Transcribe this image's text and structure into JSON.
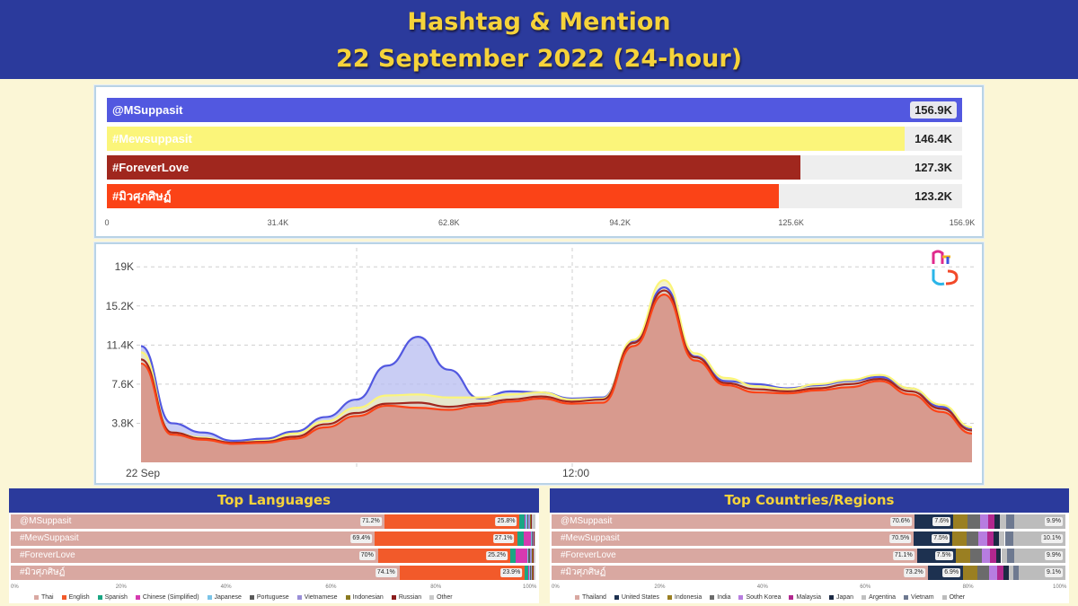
{
  "header": {
    "title_line1": "Hashtag & Mention",
    "title_line2": "22 September 2022 (24-hour)"
  },
  "colors": {
    "header_bg": "#2b3a9c",
    "header_text": "#f6d33a",
    "page_bg": "#fbf6d6",
    "series": [
      "#5258e0",
      "#fbf57a",
      "#a0271e",
      "#fb4317"
    ],
    "area_fill": "#d89a8e"
  },
  "logo": {
    "icon": "brand-logo-icon",
    "text": "MS"
  },
  "bar_chart": {
    "chart_data": {
      "type": "bar",
      "orientation": "horizontal",
      "categories": [
        "@MSuppasit",
        "#Mewsuppasit",
        "#ForeverLove",
        "#มิวศุภศิษฏ์"
      ],
      "values": [
        156900,
        146400,
        127300,
        123200
      ],
      "value_labels": [
        "156.9K",
        "146.4K",
        "127.3K",
        "123.2K"
      ],
      "xlim": [
        0,
        156900
      ],
      "x_ticks": [
        "0",
        "31.4K",
        "62.8K",
        "94.2K",
        "125.6K",
        "156.9K"
      ],
      "label_colors": [
        "#ffffff",
        "#ffffff",
        "#ffffff",
        "#ffffff"
      ]
    }
  },
  "line_chart": {
    "chart_data": {
      "type": "area",
      "x_tick_labels": [
        "22 Sep",
        "12:00"
      ],
      "y_tick_labels": [
        "19K",
        "15.2K",
        "11.4K",
        "7.6K",
        "3.8K"
      ],
      "y_ticks": [
        19000,
        15200,
        11400,
        7600,
        3800
      ],
      "ylim": [
        0,
        20500
      ],
      "grid": true,
      "series": [
        {
          "values": [
            11300,
            3800,
            2900,
            2100,
            2300,
            3000,
            4400,
            6100,
            9400,
            12200,
            9000,
            6200,
            6900,
            6800,
            6200,
            6300,
            11800,
            17000,
            10300,
            7900,
            7600,
            7200,
            7500,
            7900,
            8300,
            7200,
            5400,
            3300
          ]
        },
        {
          "values": [
            10700,
            2900,
            2400,
            1900,
            2100,
            2800,
            4000,
            5300,
            6500,
            6600,
            6300,
            6300,
            6600,
            6800,
            6100,
            6200,
            11900,
            17700,
            10600,
            8200,
            7400,
            7100,
            7600,
            8000,
            8500,
            7200,
            5600,
            3400
          ]
        },
        {
          "values": [
            10000,
            2900,
            2300,
            1900,
            2000,
            2500,
            3700,
            4800,
            5700,
            5800,
            5400,
            5700,
            6100,
            6400,
            5900,
            6100,
            11600,
            16700,
            10200,
            7700,
            7100,
            6900,
            7200,
            7600,
            8100,
            6900,
            5200,
            3100
          ]
        },
        {
          "values": [
            9600,
            2700,
            2200,
            1800,
            1900,
            2300,
            3400,
            4500,
            5500,
            5300,
            5100,
            5500,
            5900,
            6200,
            5700,
            5800,
            11300,
            16300,
            9900,
            7500,
            6800,
            6700,
            7000,
            7300,
            7900,
            6600,
            4900,
            2800
          ]
        }
      ]
    }
  },
  "languages": {
    "title": "Top Languages",
    "x_ticks": [
      "0%",
      "20%",
      "40%",
      "60%",
      "80%",
      "100%"
    ],
    "legend": [
      {
        "name": "Thai",
        "color": "#d9a8a1"
      },
      {
        "name": "English",
        "color": "#f25a2a"
      },
      {
        "name": "Spanish",
        "color": "#1aa683"
      },
      {
        "name": "Chinese (Simplified)",
        "color": "#d63ab0"
      },
      {
        "name": "Japanese",
        "color": "#7ac4e8"
      },
      {
        "name": "Portuguese",
        "color": "#5a5a5a"
      },
      {
        "name": "Vietnamese",
        "color": "#9a8fd8"
      },
      {
        "name": "Indonesian",
        "color": "#8a7a20"
      },
      {
        "name": "Russian",
        "color": "#8b1d1d"
      },
      {
        "name": "Other",
        "color": "#c9c9c9"
      }
    ],
    "rows": [
      {
        "label": "@MSuppasit",
        "values": [
          71.2,
          25.8,
          1.0,
          0.2,
          0.2,
          0.3,
          0.2,
          0.2,
          0.2,
          0.7
        ],
        "labels": [
          "71.2%",
          "25.8%"
        ]
      },
      {
        "label": "#MewSuppasit",
        "values": [
          69.4,
          27.1,
          1.2,
          1.5,
          0.1,
          0.2,
          0.1,
          0.1,
          0.1,
          0.2
        ],
        "labels": [
          "69.4%",
          "27.1%"
        ]
      },
      {
        "label": "#ForeverLove",
        "values": [
          70,
          25.2,
          1.0,
          2.2,
          0.3,
          0.3,
          0.3,
          0.2,
          0.2,
          0.3
        ],
        "labels": [
          "70%",
          "25.2%"
        ]
      },
      {
        "label": "#มิวศุภศิษฏ์",
        "values": [
          74.1,
          23.9,
          0.6,
          0.2,
          0.2,
          0.2,
          0.2,
          0.1,
          0.1,
          0.4
        ],
        "labels": [
          "74.1%",
          "23.9%"
        ]
      }
    ]
  },
  "countries": {
    "title": "Top Countries/Regions",
    "x_ticks": [
      "0%",
      "20%",
      "40%",
      "60%",
      "80%",
      "100%"
    ],
    "legend": [
      {
        "name": "Thailand",
        "color": "#d9a8a1"
      },
      {
        "name": "United States",
        "color": "#1d3150"
      },
      {
        "name": "Indonesia",
        "color": "#9a7f22"
      },
      {
        "name": "India",
        "color": "#6b6b6b"
      },
      {
        "name": "South Korea",
        "color": "#b77de0"
      },
      {
        "name": "Malaysia",
        "color": "#b1278e"
      },
      {
        "name": "Japan",
        "color": "#1d2a44"
      },
      {
        "name": "Argentina",
        "color": "#c0c0c0"
      },
      {
        "name": "Vietnam",
        "color": "#6e7990"
      },
      {
        "name": "Other",
        "color": "#bcbcbc"
      }
    ],
    "rows": [
      {
        "label": "@MSuppasit",
        "values": [
          70.6,
          7.6,
          2.8,
          2.4,
          1.6,
          1.2,
          1.0,
          1.2,
          1.7,
          9.9
        ],
        "labels": [
          "70.6%",
          "7.6%",
          "9.9%"
        ]
      },
      {
        "label": "#MewSuppasit",
        "values": [
          70.5,
          7.5,
          2.8,
          2.3,
          1.7,
          1.2,
          1.0,
          1.2,
          1.7,
          10.1
        ],
        "labels": [
          "70.5%",
          "7.5%",
          "10.1%"
        ]
      },
      {
        "label": "#ForeverLove",
        "values": [
          71.1,
          7.5,
          2.8,
          2.3,
          1.6,
          1.2,
          1.0,
          1.2,
          1.4,
          9.9
        ],
        "labels": [
          "71.1%",
          "7.5%",
          "9.9%"
        ]
      },
      {
        "label": "#มิวศุภศิษฏ์",
        "values": [
          73.2,
          6.9,
          2.7,
          2.3,
          1.6,
          1.2,
          1.0,
          1.0,
          1.0,
          9.1
        ],
        "labels": [
          "73.2%",
          "6.9%",
          "9.1%"
        ]
      }
    ]
  }
}
